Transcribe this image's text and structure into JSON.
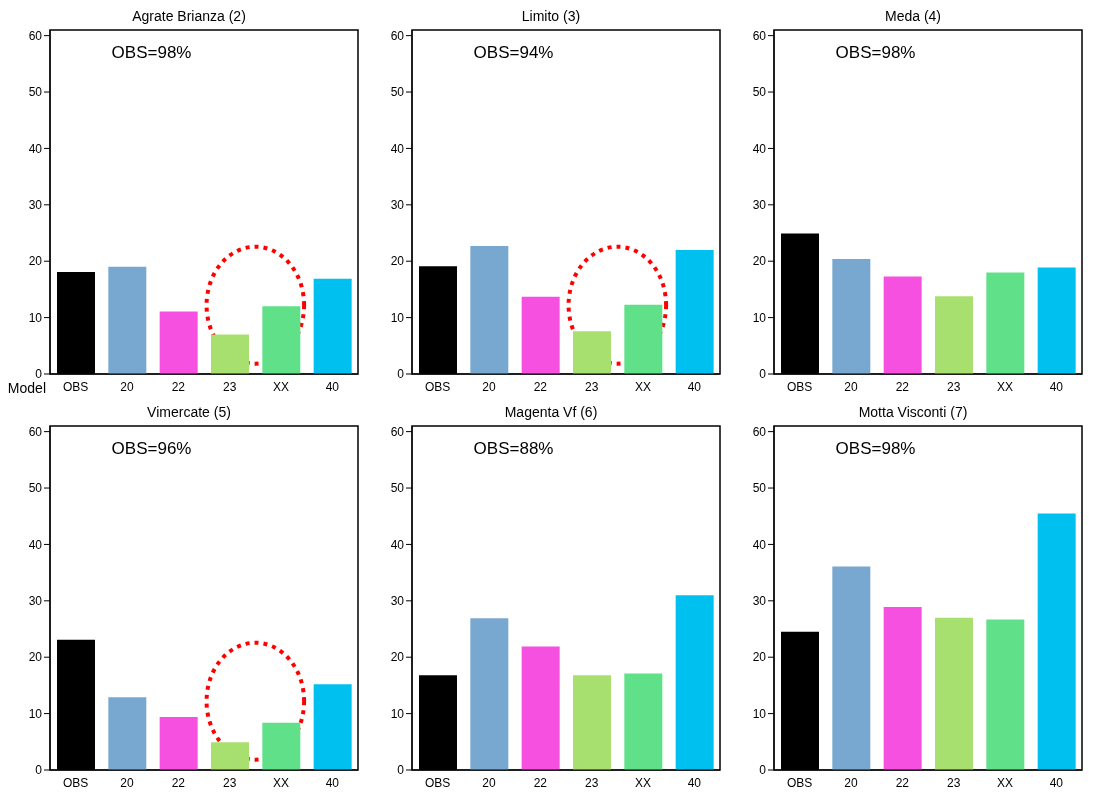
{
  "chart_data": [
    {
      "type": "bar",
      "title": "Agrate Brianza (2)",
      "xlabel": "Model",
      "categories": [
        "OBS",
        "20",
        "22",
        "23",
        "XX",
        "40"
      ],
      "values": [
        18.1,
        19.0,
        11.1,
        7.0,
        12.0,
        16.9
      ],
      "colors": [
        "#000000",
        "#78a8d0",
        "#f550e0",
        "#a8e070",
        "#60e088",
        "#00c0f0"
      ],
      "ylim": [
        0,
        61
      ],
      "yticks": [
        0,
        10,
        20,
        30,
        40,
        50,
        60
      ],
      "annotations": [
        "OBS=98%"
      ]
    },
    {
      "type": "bar",
      "title": "Limito (3)",
      "categories": [
        "OBS",
        "20",
        "22",
        "23",
        "XX",
        "40"
      ],
      "values": [
        19.1,
        22.7,
        13.7,
        7.6,
        12.3,
        22.0
      ],
      "colors": [
        "#000000",
        "#78a8d0",
        "#f550e0",
        "#a8e070",
        "#60e088",
        "#00c0f0"
      ],
      "ylim": [
        0,
        61
      ],
      "yticks": [
        0,
        10,
        20,
        30,
        40,
        50,
        60
      ],
      "annotations": [
        "OBS=94%"
      ]
    },
    {
      "type": "bar",
      "title": "Meda (4)",
      "categories": [
        "OBS",
        "20",
        "22",
        "23",
        "XX",
        "40"
      ],
      "values": [
        24.9,
        20.4,
        17.3,
        13.8,
        18.0,
        18.9
      ],
      "colors": [
        "#000000",
        "#78a8d0",
        "#f550e0",
        "#a8e070",
        "#60e088",
        "#00c0f0"
      ],
      "ylim": [
        0,
        61
      ],
      "yticks": [
        0,
        10,
        20,
        30,
        40,
        50,
        60
      ],
      "annotations": [
        "OBS=98%"
      ]
    },
    {
      "type": "bar",
      "title": "Vimercate (5)",
      "categories": [
        "OBS",
        "20",
        "22",
        "23",
        "XX",
        "40"
      ],
      "values": [
        23.1,
        12.9,
        9.4,
        4.9,
        8.4,
        15.2
      ],
      "colors": [
        "#000000",
        "#78a8d0",
        "#f550e0",
        "#a8e070",
        "#60e088",
        "#00c0f0"
      ],
      "ylim": [
        0,
        61
      ],
      "yticks": [
        0,
        10,
        20,
        30,
        40,
        50,
        60
      ],
      "annotations": [
        "OBS=96%"
      ]
    },
    {
      "type": "bar",
      "title": "Magenta Vf (6)",
      "categories": [
        "OBS",
        "20",
        "22",
        "23",
        "XX",
        "40"
      ],
      "values": [
        16.8,
        26.9,
        21.9,
        16.8,
        17.1,
        31.0
      ],
      "colors": [
        "#000000",
        "#78a8d0",
        "#f550e0",
        "#a8e070",
        "#60e088",
        "#00c0f0"
      ],
      "ylim": [
        0,
        61
      ],
      "yticks": [
        0,
        10,
        20,
        30,
        40,
        50,
        60
      ],
      "annotations": [
        "OBS=88%"
      ]
    },
    {
      "type": "bar",
      "title": "Motta Visconti (7)",
      "categories": [
        "OBS",
        "20",
        "22",
        "23",
        "XX",
        "40"
      ],
      "values": [
        24.5,
        36.1,
        28.9,
        27.0,
        26.7,
        45.5
      ],
      "colors": [
        "#000000",
        "#78a8d0",
        "#f550e0",
        "#a8e070",
        "#60e088",
        "#00c0f0"
      ],
      "ylim": [
        0,
        61
      ],
      "yticks": [
        0,
        10,
        20,
        30,
        40,
        50,
        60
      ],
      "annotations": [
        "OBS=98%"
      ]
    }
  ]
}
